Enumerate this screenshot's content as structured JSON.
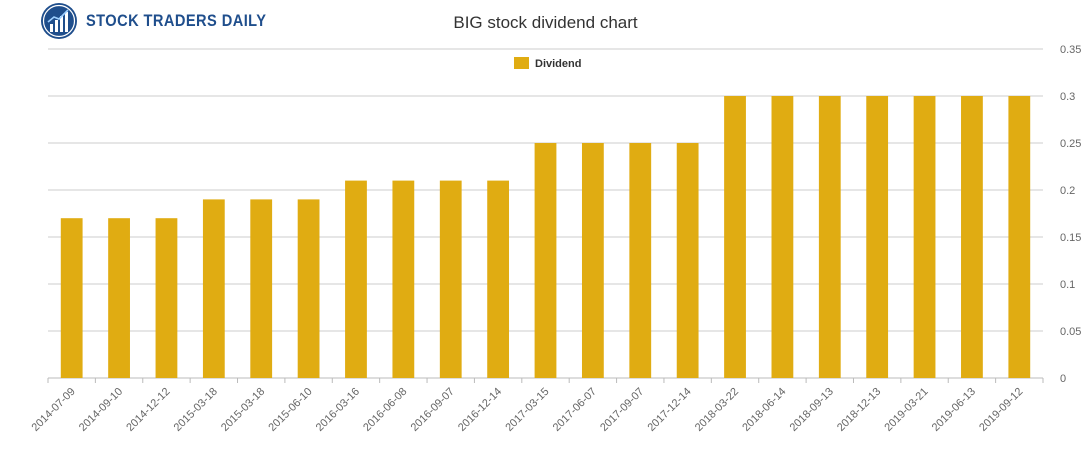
{
  "header": {
    "logo_text": "STOCK TRADERS DAILY",
    "logo_icon": "rising-bars-chart-icon",
    "brand_color": "#1f4e8c"
  },
  "chart_data": {
    "type": "bar",
    "title": "BIG stock dividend chart",
    "xlabel": "",
    "ylabel": "",
    "categories": [
      "2014-07-09",
      "2014-09-10",
      "2014-12-12",
      "2015-03-18",
      "2015-03-18",
      "2015-06-10",
      "2016-03-16",
      "2016-06-08",
      "2016-09-07",
      "2016-12-14",
      "2017-03-15",
      "2017-06-07",
      "2017-09-07",
      "2017-12-14",
      "2018-03-22",
      "2018-06-14",
      "2018-09-13",
      "2018-12-13",
      "2019-03-21",
      "2019-06-13",
      "2019-09-12"
    ],
    "series": [
      {
        "name": "Dividend",
        "color": "#e0ac12",
        "values": [
          0.17,
          0.17,
          0.17,
          0.19,
          0.19,
          0.19,
          0.21,
          0.21,
          0.21,
          0.21,
          0.25,
          0.25,
          0.25,
          0.25,
          0.3,
          0.3,
          0.3,
          0.3,
          0.3,
          0.3,
          0.3
        ]
      }
    ],
    "ylim": [
      0,
      0.35
    ],
    "yticks": [
      "0",
      "0.05",
      "0.1",
      "0.15",
      "0.2",
      "0.25",
      "0.3",
      "0.35"
    ],
    "y_axis_side": "right",
    "grid": true,
    "legend_placement": "top-center"
  }
}
